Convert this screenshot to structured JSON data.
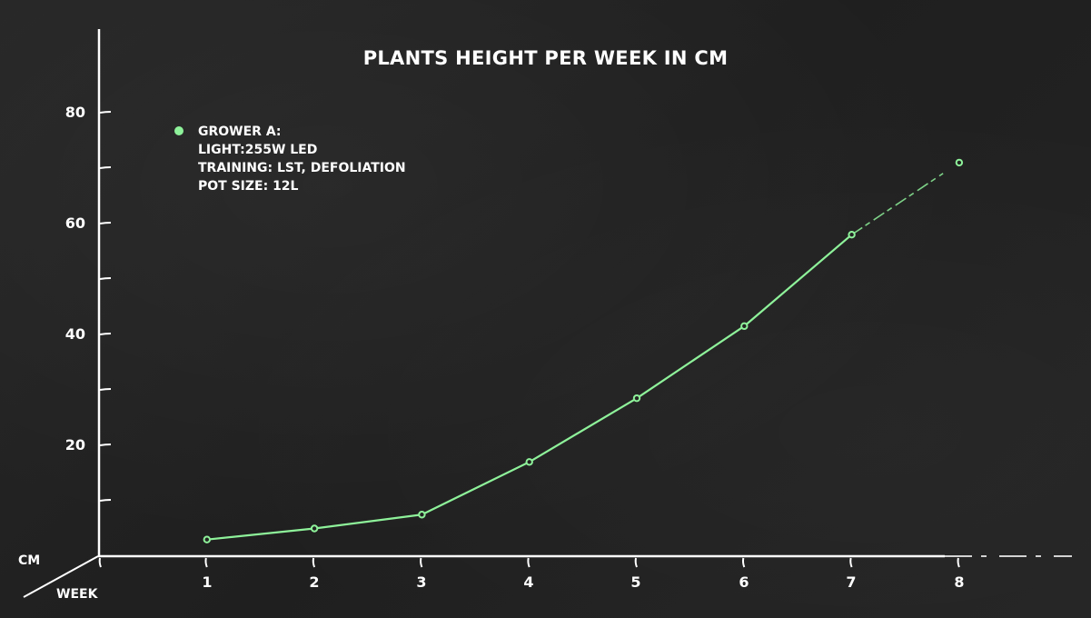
{
  "title": "PLANTS HEIGHT PER WEEK IN CM",
  "legend": {
    "lines": [
      "GROWER A:",
      "LIGHT:255W LED",
      "TRAINING: LST, DEFOLIATION",
      "POT SIZE: 12L"
    ],
    "color": "#8ef29a"
  },
  "axes": {
    "y_name": "CM",
    "x_name": "WEEK",
    "y_ticks": [
      "80",
      "60",
      "40",
      "20"
    ],
    "x_ticks": [
      "1",
      "2",
      "3",
      "4",
      "5",
      "6",
      "7",
      "8"
    ]
  },
  "colors": {
    "background": "#232323",
    "line": "#8ef29a",
    "axis": "#ffffff"
  },
  "chart_data": {
    "type": "line",
    "title": "PLANTS HEIGHT PER WEEK IN CM",
    "xlabel": "WEEK",
    "ylabel": "CM",
    "x": [
      1,
      2,
      3,
      4,
      5,
      6,
      7,
      8
    ],
    "series": [
      {
        "name": "GROWER A: LIGHT:255W LED, TRAINING: LST, DEFOLIATION, POT SIZE: 12L",
        "values": [
          3,
          5,
          7.5,
          17,
          28.5,
          41.5,
          58,
          71
        ]
      }
    ],
    "ylim": [
      0,
      90
    ],
    "xlim": [
      0,
      9
    ],
    "y_ticks": [
      20,
      40,
      60,
      80
    ],
    "minor_y_ticks": [
      10,
      30,
      50,
      70
    ],
    "grid": false,
    "legend_position": "top-left",
    "annotations": [
      "segment from week 7 to 8 drawn dashed"
    ]
  }
}
